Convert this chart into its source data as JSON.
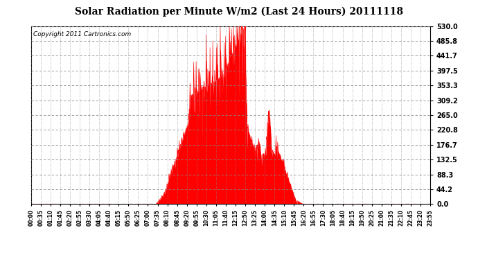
{
  "title": "Solar Radiation per Minute W/m2 (Last 24 Hours) 20111118",
  "copyright": "Copyright 2011 Cartronics.com",
  "background_color": "#ffffff",
  "plot_bg_color": "#ffffff",
  "fill_color": "#ff0000",
  "line_color": "#ff0000",
  "grid_color": "#888888",
  "yticks": [
    0.0,
    44.2,
    88.3,
    132.5,
    176.7,
    220.8,
    265.0,
    309.2,
    353.3,
    397.5,
    441.7,
    485.8,
    530.0
  ],
  "ymax": 530.0,
  "ymin": 0.0,
  "xtick_labels": [
    "00:00",
    "00:35",
    "01:10",
    "01:45",
    "02:20",
    "02:55",
    "03:30",
    "04:05",
    "04:40",
    "05:15",
    "05:50",
    "06:25",
    "07:00",
    "07:35",
    "08:10",
    "08:45",
    "09:20",
    "09:55",
    "10:30",
    "11:05",
    "11:40",
    "12:15",
    "12:50",
    "13:25",
    "14:00",
    "14:35",
    "15:10",
    "15:45",
    "16:20",
    "16:55",
    "17:30",
    "18:05",
    "18:40",
    "19:15",
    "19:50",
    "20:25",
    "21:00",
    "21:35",
    "22:10",
    "22:45",
    "23:20",
    "23:55"
  ],
  "dashed_line_color": "#ff0000",
  "title_fontsize": 10,
  "copyright_fontsize": 6.5,
  "ytick_fontsize": 7,
  "xtick_fontsize": 5.5
}
